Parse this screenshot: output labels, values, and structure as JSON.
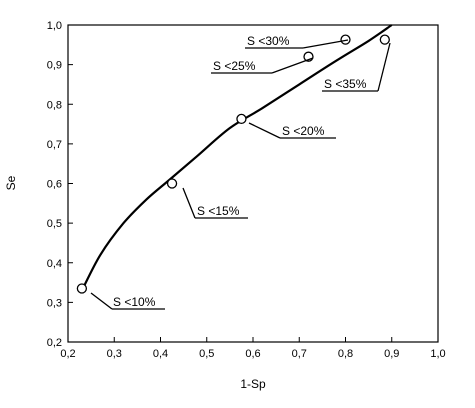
{
  "chart_data": {
    "type": "line",
    "title": "",
    "xlabel": "1-Sp",
    "ylabel": "Se",
    "xlim": [
      0.2,
      1.0
    ],
    "ylim": [
      0.2,
      1.0
    ],
    "xticks": [
      "0,2",
      "0,3",
      "0,4",
      "0,5",
      "0,6",
      "0,7",
      "0,8",
      "0,9",
      "1,0"
    ],
    "yticks": [
      "0,2",
      "0,3",
      "0,4",
      "0,5",
      "0,6",
      "0,7",
      "0,8",
      "0,9",
      "1,0"
    ],
    "grid": false,
    "legend": "none",
    "curve": {
      "x": [
        0.23,
        0.27,
        0.32,
        0.37,
        0.42,
        0.48,
        0.55,
        0.62,
        0.7,
        0.78,
        0.85,
        0.9
      ],
      "y": [
        0.33,
        0.42,
        0.5,
        0.56,
        0.61,
        0.67,
        0.74,
        0.79,
        0.85,
        0.91,
        0.96,
        1.0
      ]
    },
    "points": [
      {
        "x": 0.23,
        "y": 0.335,
        "label": "S <10%"
      },
      {
        "x": 0.425,
        "y": 0.6,
        "label": "S <15%"
      },
      {
        "x": 0.575,
        "y": 0.763,
        "label": "S <20%"
      },
      {
        "x": 0.72,
        "y": 0.92,
        "label": "S <25%"
      },
      {
        "x": 0.8,
        "y": 0.963,
        "label": "S <30%"
      },
      {
        "x": 0.885,
        "y": 0.963,
        "label": "S <35%"
      }
    ]
  }
}
